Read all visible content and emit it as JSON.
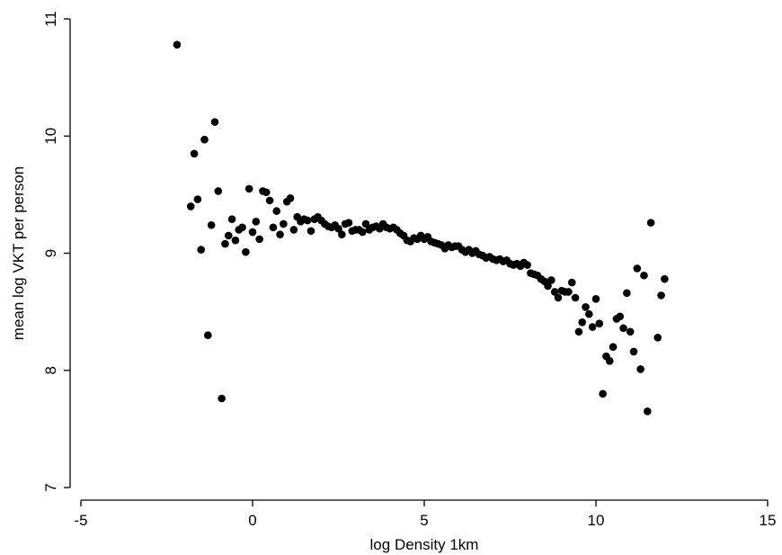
{
  "chart_data": {
    "type": "scatter",
    "title": "",
    "xlabel": "log Density 1km",
    "ylabel": "mean log VKT per person",
    "xlim": [
      -5,
      15
    ],
    "ylim": [
      7,
      11
    ],
    "xticks": [
      {
        "value": -5,
        "label": "-5"
      },
      {
        "value": 0,
        "label": "0"
      },
      {
        "value": 5,
        "label": "5"
      },
      {
        "value": 10,
        "label": "10"
      },
      {
        "value": 15,
        "label": "15"
      }
    ],
    "yticks": [
      {
        "value": 7,
        "label": "7"
      },
      {
        "value": 8,
        "label": "8"
      },
      {
        "value": 9,
        "label": "9"
      },
      {
        "value": 10,
        "label": "10"
      },
      {
        "value": 11,
        "label": "11"
      }
    ],
    "grid": false,
    "legend": "none",
    "marker_color": "#000000",
    "points": [
      [
        -2.2,
        10.78
      ],
      [
        -1.8,
        9.4
      ],
      [
        -1.7,
        9.85
      ],
      [
        -1.6,
        9.46
      ],
      [
        -1.5,
        9.03
      ],
      [
        -1.4,
        9.97
      ],
      [
        -1.3,
        8.3
      ],
      [
        -1.2,
        9.24
      ],
      [
        -1.1,
        10.12
      ],
      [
        -1.0,
        9.53
      ],
      [
        -0.9,
        7.76
      ],
      [
        -0.8,
        9.08
      ],
      [
        -0.7,
        9.15
      ],
      [
        -0.6,
        9.29
      ],
      [
        -0.5,
        9.11
      ],
      [
        -0.4,
        9.2
      ],
      [
        -0.3,
        9.22
      ],
      [
        -0.2,
        9.01
      ],
      [
        -0.1,
        9.55
      ],
      [
        0.0,
        9.18
      ],
      [
        0.1,
        9.27
      ],
      [
        0.2,
        9.12
      ],
      [
        0.3,
        9.53
      ],
      [
        0.4,
        9.52
      ],
      [
        0.5,
        9.45
      ],
      [
        0.6,
        9.22
      ],
      [
        0.7,
        9.36
      ],
      [
        0.8,
        9.16
      ],
      [
        0.9,
        9.25
      ],
      [
        1.0,
        9.44
      ],
      [
        1.1,
        9.47
      ],
      [
        1.2,
        9.2
      ],
      [
        1.3,
        9.31
      ],
      [
        1.4,
        9.27
      ],
      [
        1.5,
        9.29
      ],
      [
        1.6,
        9.28
      ],
      [
        1.7,
        9.19
      ],
      [
        1.8,
        9.29
      ],
      [
        1.9,
        9.31
      ],
      [
        2.0,
        9.28
      ],
      [
        2.1,
        9.25
      ],
      [
        2.2,
        9.23
      ],
      [
        2.3,
        9.22
      ],
      [
        2.4,
        9.24
      ],
      [
        2.5,
        9.21
      ],
      [
        2.6,
        9.16
      ],
      [
        2.7,
        9.25
      ],
      [
        2.8,
        9.26
      ],
      [
        2.9,
        9.19
      ],
      [
        3.0,
        9.2
      ],
      [
        3.1,
        9.2
      ],
      [
        3.2,
        9.18
      ],
      [
        3.3,
        9.25
      ],
      [
        3.4,
        9.2
      ],
      [
        3.5,
        9.22
      ],
      [
        3.6,
        9.23
      ],
      [
        3.7,
        9.21
      ],
      [
        3.8,
        9.25
      ],
      [
        3.9,
        9.22
      ],
      [
        4.0,
        9.21
      ],
      [
        4.1,
        9.22
      ],
      [
        4.2,
        9.2
      ],
      [
        4.3,
        9.17
      ],
      [
        4.4,
        9.15
      ],
      [
        4.5,
        9.11
      ],
      [
        4.6,
        9.1
      ],
      [
        4.7,
        9.13
      ],
      [
        4.8,
        9.12
      ],
      [
        4.9,
        9.15
      ],
      [
        5.0,
        9.12
      ],
      [
        5.1,
        9.14
      ],
      [
        5.2,
        9.1
      ],
      [
        5.3,
        9.09
      ],
      [
        5.4,
        9.08
      ],
      [
        5.5,
        9.07
      ],
      [
        5.6,
        9.04
      ],
      [
        5.7,
        9.07
      ],
      [
        5.8,
        9.05
      ],
      [
        5.9,
        9.06
      ],
      [
        6.0,
        9.06
      ],
      [
        6.1,
        9.03
      ],
      [
        6.2,
        9.01
      ],
      [
        6.3,
        9.03
      ],
      [
        6.4,
        9.0
      ],
      [
        6.5,
        9.02
      ],
      [
        6.6,
        8.99
      ],
      [
        6.7,
        8.98
      ],
      [
        6.8,
        8.96
      ],
      [
        6.9,
        8.97
      ],
      [
        7.0,
        8.95
      ],
      [
        7.1,
        8.94
      ],
      [
        7.2,
        8.95
      ],
      [
        7.3,
        8.93
      ],
      [
        7.4,
        8.94
      ],
      [
        7.5,
        8.91
      ],
      [
        7.6,
        8.9
      ],
      [
        7.7,
        8.91
      ],
      [
        7.8,
        8.89
      ],
      [
        7.9,
        8.92
      ],
      [
        8.0,
        8.9
      ],
      [
        8.1,
        8.83
      ],
      [
        8.2,
        8.82
      ],
      [
        8.3,
        8.81
      ],
      [
        8.4,
        8.78
      ],
      [
        8.5,
        8.76
      ],
      [
        8.6,
        8.72
      ],
      [
        8.7,
        8.77
      ],
      [
        8.8,
        8.67
      ],
      [
        8.9,
        8.62
      ],
      [
        9.0,
        8.68
      ],
      [
        9.1,
        8.67
      ],
      [
        9.2,
        8.67
      ],
      [
        9.3,
        8.75
      ],
      [
        9.4,
        8.62
      ],
      [
        9.5,
        8.33
      ],
      [
        9.6,
        8.41
      ],
      [
        9.7,
        8.54
      ],
      [
        9.8,
        8.48
      ],
      [
        9.9,
        8.37
      ],
      [
        10.0,
        8.61
      ],
      [
        10.1,
        8.4
      ],
      [
        10.2,
        7.8
      ],
      [
        10.3,
        8.12
      ],
      [
        10.4,
        8.08
      ],
      [
        10.5,
        8.2
      ],
      [
        10.6,
        8.44
      ],
      [
        10.7,
        8.46
      ],
      [
        10.8,
        8.36
      ],
      [
        10.9,
        8.66
      ],
      [
        11.0,
        8.33
      ],
      [
        11.1,
        8.16
      ],
      [
        11.2,
        8.87
      ],
      [
        11.3,
        8.01
      ],
      [
        11.4,
        8.81
      ],
      [
        11.5,
        7.65
      ],
      [
        11.6,
        9.26
      ],
      [
        11.8,
        8.28
      ],
      [
        11.9,
        8.64
      ],
      [
        12.0,
        8.78
      ]
    ]
  }
}
